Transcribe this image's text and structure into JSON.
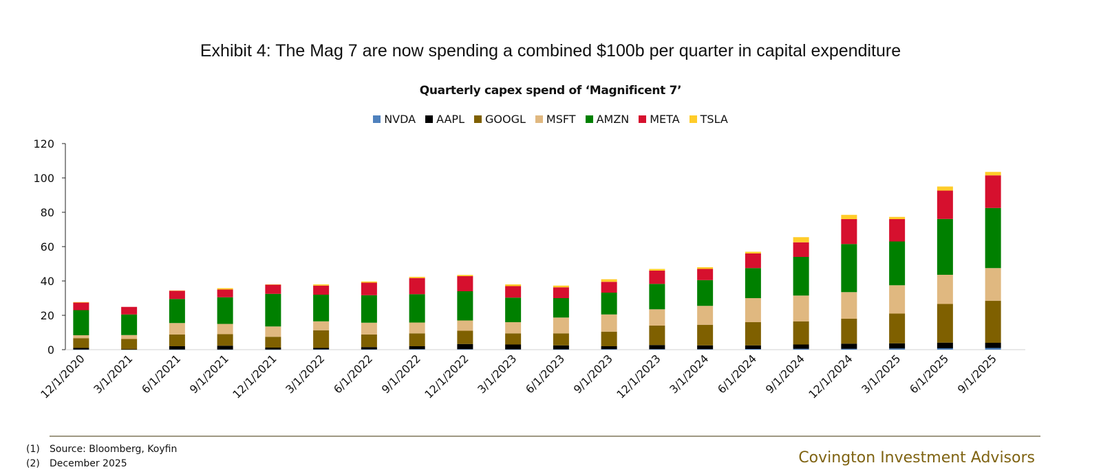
{
  "exhibit_title": "Exhibit 4: The Mag 7 are now spending a combined $100b per quarter in capital expenditure",
  "footnotes": [
    {
      "num": "(1)",
      "text": "Source: Bloomberg, Koyfin"
    },
    {
      "num": "(2)",
      "text": "December 2025"
    }
  ],
  "brand": "Covington Investment Advisors",
  "colors": {
    "NVDA": "#4f81bd",
    "AAPL": "#000000",
    "GOOGL": "#7f6000",
    "MSFT": "#e0b880",
    "AMZN": "#008000",
    "META": "#d6102e",
    "TSLA": "#ffcc29",
    "brand": "#7f6312",
    "divider": "#9e9882"
  },
  "chart_data": {
    "type": "bar",
    "stacked": true,
    "title": "Quarterly capex spend of ‘Magnificent 7’",
    "xlabel": "",
    "ylabel": "",
    "ylim": [
      0,
      120
    ],
    "yticks": [
      0,
      20,
      40,
      60,
      80,
      100,
      120
    ],
    "grid": false,
    "legend_position": "top-center",
    "categories": [
      "12/1/2020",
      "3/1/2021",
      "6/1/2021",
      "9/1/2021",
      "12/1/2021",
      "3/1/2022",
      "6/1/2022",
      "9/1/2022",
      "12/1/2022",
      "3/1/2023",
      "6/1/2023",
      "9/1/2023",
      "12/1/2023",
      "3/1/2024",
      "6/1/2024",
      "9/1/2024",
      "12/1/2024",
      "3/1/2025",
      "6/1/2025",
      "9/1/2025"
    ],
    "series": [
      {
        "name": "NVDA",
        "values": [
          0.1,
          0.1,
          0.1,
          0.1,
          0.1,
          0.2,
          0.2,
          0.3,
          0.3,
          0.2,
          0.2,
          0.3,
          0.3,
          0.3,
          0.4,
          0.5,
          0.5,
          0.7,
          0.8,
          1.0
        ]
      },
      {
        "name": "AAPL",
        "values": [
          0.9,
          0.1,
          1.9,
          2.2,
          1.1,
          0.8,
          1.3,
          1.7,
          3.0,
          2.8,
          2.3,
          1.7,
          2.4,
          2.2,
          2.1,
          2.5,
          3.0,
          3.0,
          3.3,
          3.0
        ]
      },
      {
        "name": "GOOGL",
        "values": [
          5.7,
          6.0,
          6.8,
          6.7,
          6.3,
          10.3,
          7.3,
          7.5,
          7.7,
          6.5,
          7.0,
          8.5,
          11.3,
          12.0,
          13.5,
          13.5,
          14.5,
          17.3,
          22.5,
          24.5
        ]
      },
      {
        "name": "MSFT",
        "values": [
          1.7,
          2.3,
          6.7,
          6.0,
          6.0,
          5.2,
          6.9,
          6.3,
          6.0,
          6.5,
          9.2,
          10.0,
          9.5,
          11.0,
          14.0,
          15.0,
          15.5,
          16.5,
          17.0,
          19.0
        ]
      },
      {
        "name": "AMZN",
        "values": [
          14.6,
          12.0,
          14.0,
          15.5,
          19.0,
          15.5,
          16.0,
          16.5,
          17.0,
          14.3,
          11.3,
          12.7,
          14.8,
          15.0,
          17.5,
          22.5,
          28.0,
          25.5,
          32.5,
          35.0
        ]
      },
      {
        "name": "META",
        "values": [
          4.4,
          4.4,
          4.8,
          4.5,
          5.3,
          5.3,
          7.3,
          9.4,
          8.8,
          6.7,
          6.3,
          6.3,
          7.7,
          6.5,
          8.5,
          8.5,
          14.5,
          13.0,
          16.5,
          19.0
        ]
      },
      {
        "name": "TSLA",
        "values": [
          0.3,
          0.0,
          0.2,
          0.8,
          0.2,
          0.7,
          0.7,
          0.7,
          0.7,
          1.0,
          1.0,
          1.5,
          1.0,
          1.0,
          1.0,
          3.0,
          2.5,
          1.3,
          2.4,
          2.0
        ]
      }
    ]
  }
}
